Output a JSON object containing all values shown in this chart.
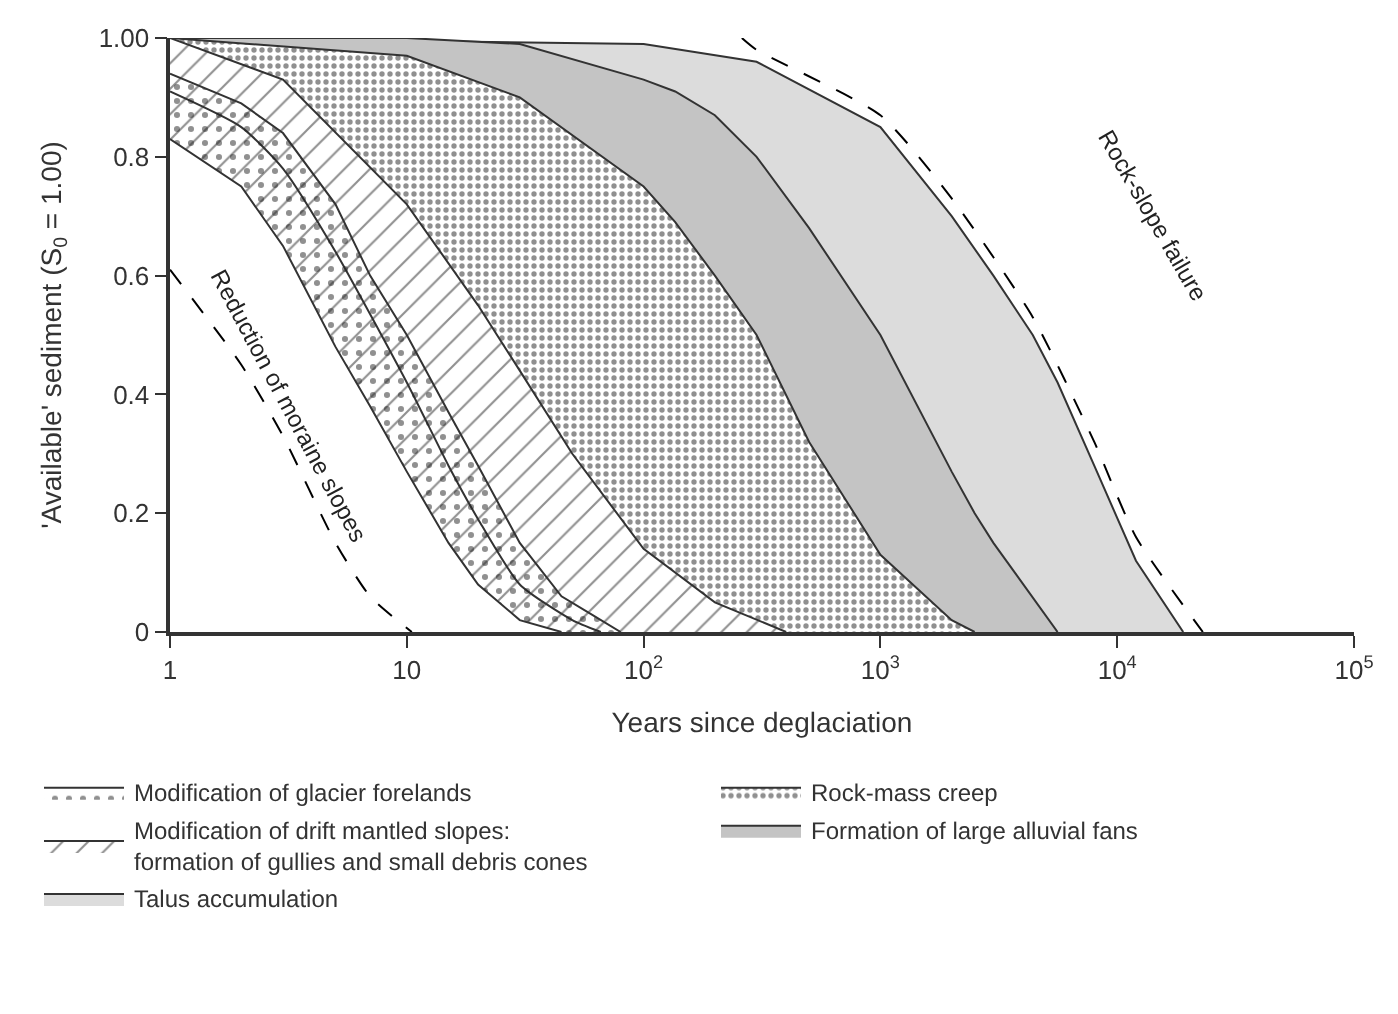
{
  "chart_data": {
    "type": "line",
    "xlabel": "Years since deglaciation",
    "ylabel": "'Available' sediment (S$_{0}$ = 1.00)",
    "log": "x",
    "xlim": [
      1,
      100000
    ],
    "ylim": [
      0,
      1
    ],
    "xticks": [
      1,
      10,
      {
        "value": 100,
        "label": "10$^{2}$"
      },
      {
        "value": 1000,
        "label": "10$^{3}$"
      },
      {
        "value": 10000,
        "label": "10$^{4}$"
      },
      {
        "value": 100000,
        "label": "10$^{5}$"
      }
    ],
    "yticks": [
      0,
      0.2,
      0.4,
      0.6,
      0.8,
      {
        "value": 1,
        "label": "1.00"
      }
    ],
    "legend": "bottom",
    "series": [
      {
        "type": "area",
        "name": "Talus accumulation",
        "color": "#dcdcdc",
        "x": [
          1,
          100,
          300,
          1000,
          2000,
          3000,
          4400,
          5600,
          8000,
          12000,
          19000
        ],
        "values": [
          1.0,
          0.99,
          0.96,
          0.85,
          0.7,
          0.6,
          0.5,
          0.42,
          0.28,
          0.12,
          0
        ]
      },
      {
        "type": "area",
        "name": "Formation of large alluvial fans",
        "color": "#c4c4c4",
        "x": [
          1,
          10,
          30,
          100,
          136,
          200,
          300,
          500,
          1000,
          2000,
          2500,
          3000,
          5600
        ],
        "values": [
          1.0,
          1.0,
          0.99,
          0.93,
          0.91,
          0.87,
          0.8,
          0.68,
          0.5,
          0.27,
          0.2,
          0.15,
          0
        ]
      },
      {
        "type": "area",
        "name": "Rock-mass creep",
        "color": "#ffffff",
        "x": [
          1,
          10,
          30,
          100,
          136,
          200,
          300,
          500,
          1000,
          2000,
          2500
        ],
        "values": [
          1.0,
          0.97,
          0.9,
          0.75,
          0.69,
          0.6,
          0.5,
          0.32,
          0.13,
          0.02,
          0
        ]
      },
      {
        "type": "area",
        "name": "Modification of drift mantled slopes:\nformation of gullies and small debris cones",
        "color": "#ffffff",
        "x": [
          1,
          3,
          10,
          20,
          30,
          50,
          100,
          200,
          400
        ],
        "values": [
          1.0,
          0.93,
          0.72,
          0.55,
          0.44,
          0.3,
          0.14,
          0.05,
          0
        ]
      },
      {
        "color": "#333333",
        "line_style": "solid",
        "x": [
          1,
          2,
          3,
          5,
          10,
          15,
          20,
          30,
          50,
          66
        ],
        "values": [
          0.91,
          0.85,
          0.78,
          0.64,
          0.42,
          0.28,
          0.19,
          0.08,
          0.02,
          0
        ]
      },
      {
        "type": "area",
        "name": "Modification of glacier forelands",
        "color": "#ffffff",
        "x": [
          1,
          2,
          3,
          5,
          7,
          10,
          15,
          20,
          30,
          45,
          60,
          80
        ],
        "values": [
          0.94,
          0.89,
          0.84,
          0.72,
          0.6,
          0.5,
          0.37,
          0.28,
          0.15,
          0.06,
          0.03,
          0
        ]
      },
      {
        "type": "area",
        "color": "#ffffff",
        "x": [
          1,
          2,
          3,
          5,
          7,
          10,
          15,
          20,
          30,
          45
        ],
        "values": [
          0.83,
          0.75,
          0.65,
          0.48,
          0.38,
          0.27,
          0.15,
          0.08,
          0.02,
          0
        ]
      },
      {
        "color": "#000000",
        "line_style": "dashed",
        "x": [
          1,
          2,
          3,
          5,
          7,
          10.5
        ],
        "values": [
          0.61,
          0.45,
          0.33,
          0.15,
          0.06,
          0
        ]
      },
      {
        "color": "#000000",
        "line_style": "dashed",
        "x": [
          260,
          300,
          1000,
          2000,
          4400,
          8000,
          12000,
          23000
        ],
        "values": [
          1.0,
          0.98,
          0.87,
          0.73,
          0.53,
          0.32,
          0.16,
          0
        ]
      }
    ],
    "annotations": [
      "Reduction of moraine slopes",
      "Rock-slope failure"
    ]
  }
}
